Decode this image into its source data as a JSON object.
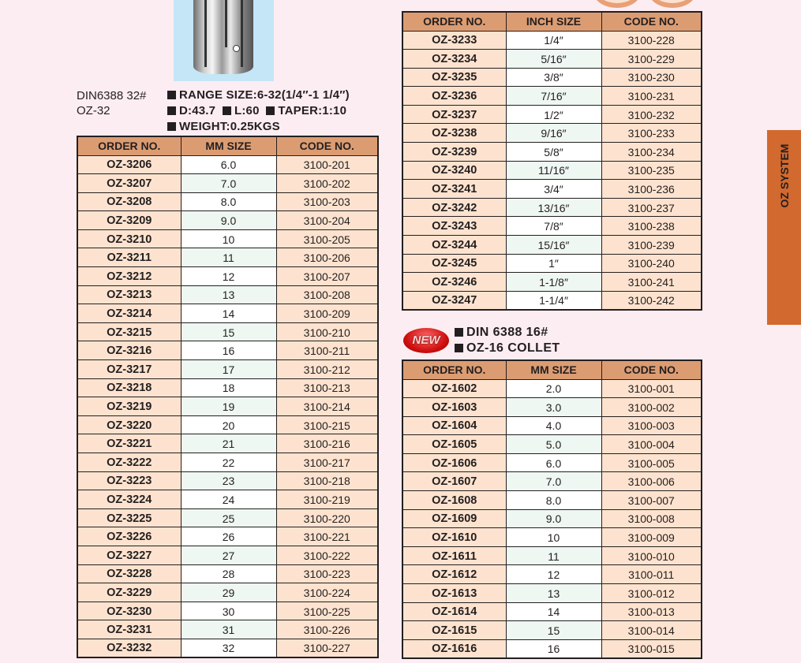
{
  "oz32": {
    "model_line1": "DIN6388 32#",
    "model_line2": "OZ-32",
    "specs": {
      "range": "RANGE SIZE:6-32(1/4″-1 1/4″)",
      "d": "D:43.7",
      "l": "L:60",
      "taper": "TAPER:1:10",
      "weight": "WEIGHT:0.25KGS"
    },
    "headers": [
      "ORDER NO.",
      "MM SIZE",
      "CODE NO."
    ],
    "rows": [
      [
        "OZ-3206",
        "6.0",
        "3100-201"
      ],
      [
        "OZ-3207",
        "7.0",
        "3100-202"
      ],
      [
        "OZ-3208",
        "8.0",
        "3100-203"
      ],
      [
        "OZ-3209",
        "9.0",
        "3100-204"
      ],
      [
        "OZ-3210",
        "10",
        "3100-205"
      ],
      [
        "OZ-3211",
        "11",
        "3100-206"
      ],
      [
        "OZ-3212",
        "12",
        "3100-207"
      ],
      [
        "OZ-3213",
        "13",
        "3100-208"
      ],
      [
        "OZ-3214",
        "14",
        "3100-209"
      ],
      [
        "OZ-3215",
        "15",
        "3100-210"
      ],
      [
        "OZ-3216",
        "16",
        "3100-211"
      ],
      [
        "OZ-3217",
        "17",
        "3100-212"
      ],
      [
        "OZ-3218",
        "18",
        "3100-213"
      ],
      [
        "OZ-3219",
        "19",
        "3100-214"
      ],
      [
        "OZ-3220",
        "20",
        "3100-215"
      ],
      [
        "OZ-3221",
        "21",
        "3100-216"
      ],
      [
        "OZ-3222",
        "22",
        "3100-217"
      ],
      [
        "OZ-3223",
        "23",
        "3100-218"
      ],
      [
        "OZ-3224",
        "24",
        "3100-219"
      ],
      [
        "OZ-3225",
        "25",
        "3100-220"
      ],
      [
        "OZ-3226",
        "26",
        "3100-221"
      ],
      [
        "OZ-3227",
        "27",
        "3100-222"
      ],
      [
        "OZ-3228",
        "28",
        "3100-223"
      ],
      [
        "OZ-3229",
        "29",
        "3100-224"
      ],
      [
        "OZ-3230",
        "30",
        "3100-225"
      ],
      [
        "OZ-3231",
        "31",
        "3100-226"
      ],
      [
        "OZ-3232",
        "32",
        "3100-227"
      ]
    ]
  },
  "oz32_inch": {
    "headers": [
      "ORDER NO.",
      "INCH SIZE",
      "CODE NO."
    ],
    "rows": [
      [
        "OZ-3233",
        "1/4″",
        "3100-228"
      ],
      [
        "OZ-3234",
        "5/16″",
        "3100-229"
      ],
      [
        "OZ-3235",
        "3/8″",
        "3100-230"
      ],
      [
        "OZ-3236",
        "7/16″",
        "3100-231"
      ],
      [
        "OZ-3237",
        "1/2″",
        "3100-232"
      ],
      [
        "OZ-3238",
        "9/16″",
        "3100-233"
      ],
      [
        "OZ-3239",
        "5/8″",
        "3100-234"
      ],
      [
        "OZ-3240",
        "11/16″",
        "3100-235"
      ],
      [
        "OZ-3241",
        "3/4″",
        "3100-236"
      ],
      [
        "OZ-3242",
        "13/16″",
        "3100-237"
      ],
      [
        "OZ-3243",
        "7/8″",
        "3100-238"
      ],
      [
        "OZ-3244",
        "15/16″",
        "3100-239"
      ],
      [
        "OZ-3245",
        "1″",
        "3100-240"
      ],
      [
        "OZ-3246",
        "1-1/8″",
        "3100-241"
      ],
      [
        "OZ-3247",
        "1-1/4″",
        "3100-242"
      ]
    ]
  },
  "oz16": {
    "badge": "NEW",
    "line1": "DIN 6388 16#",
    "line2": "OZ-16 COLLET",
    "headers": [
      "ORDER NO.",
      "MM SIZE",
      "CODE NO."
    ],
    "rows": [
      [
        "OZ-1602",
        "2.0",
        "3100-001"
      ],
      [
        "OZ-1603",
        "3.0",
        "3100-002"
      ],
      [
        "OZ-1604",
        "4.0",
        "3100-003"
      ],
      [
        "OZ-1605",
        "5.0",
        "3100-004"
      ],
      [
        "OZ-1606",
        "6.0",
        "3100-005"
      ],
      [
        "OZ-1607",
        "7.0",
        "3100-006"
      ],
      [
        "OZ-1608",
        "8.0",
        "3100-007"
      ],
      [
        "OZ-1609",
        "9.0",
        "3100-008"
      ],
      [
        "OZ-1610",
        "10",
        "3100-009"
      ],
      [
        "OZ-1611",
        "11",
        "3100-010"
      ],
      [
        "OZ-1612",
        "12",
        "3100-011"
      ],
      [
        "OZ-1613",
        "13",
        "3100-012"
      ],
      [
        "OZ-1614",
        "14",
        "3100-013"
      ],
      [
        "OZ-1615",
        "15",
        "3100-014"
      ],
      [
        "OZ-1616",
        "16",
        "3100-015"
      ]
    ]
  },
  "side_tab": "OZ SYSTEM",
  "colors": {
    "background": "#fcedf2",
    "header": "#dc9c72",
    "cell": "#fde3cf",
    "alt_row": "#eef7f1",
    "tab": "#d2692e",
    "badge": "#d01010"
  }
}
